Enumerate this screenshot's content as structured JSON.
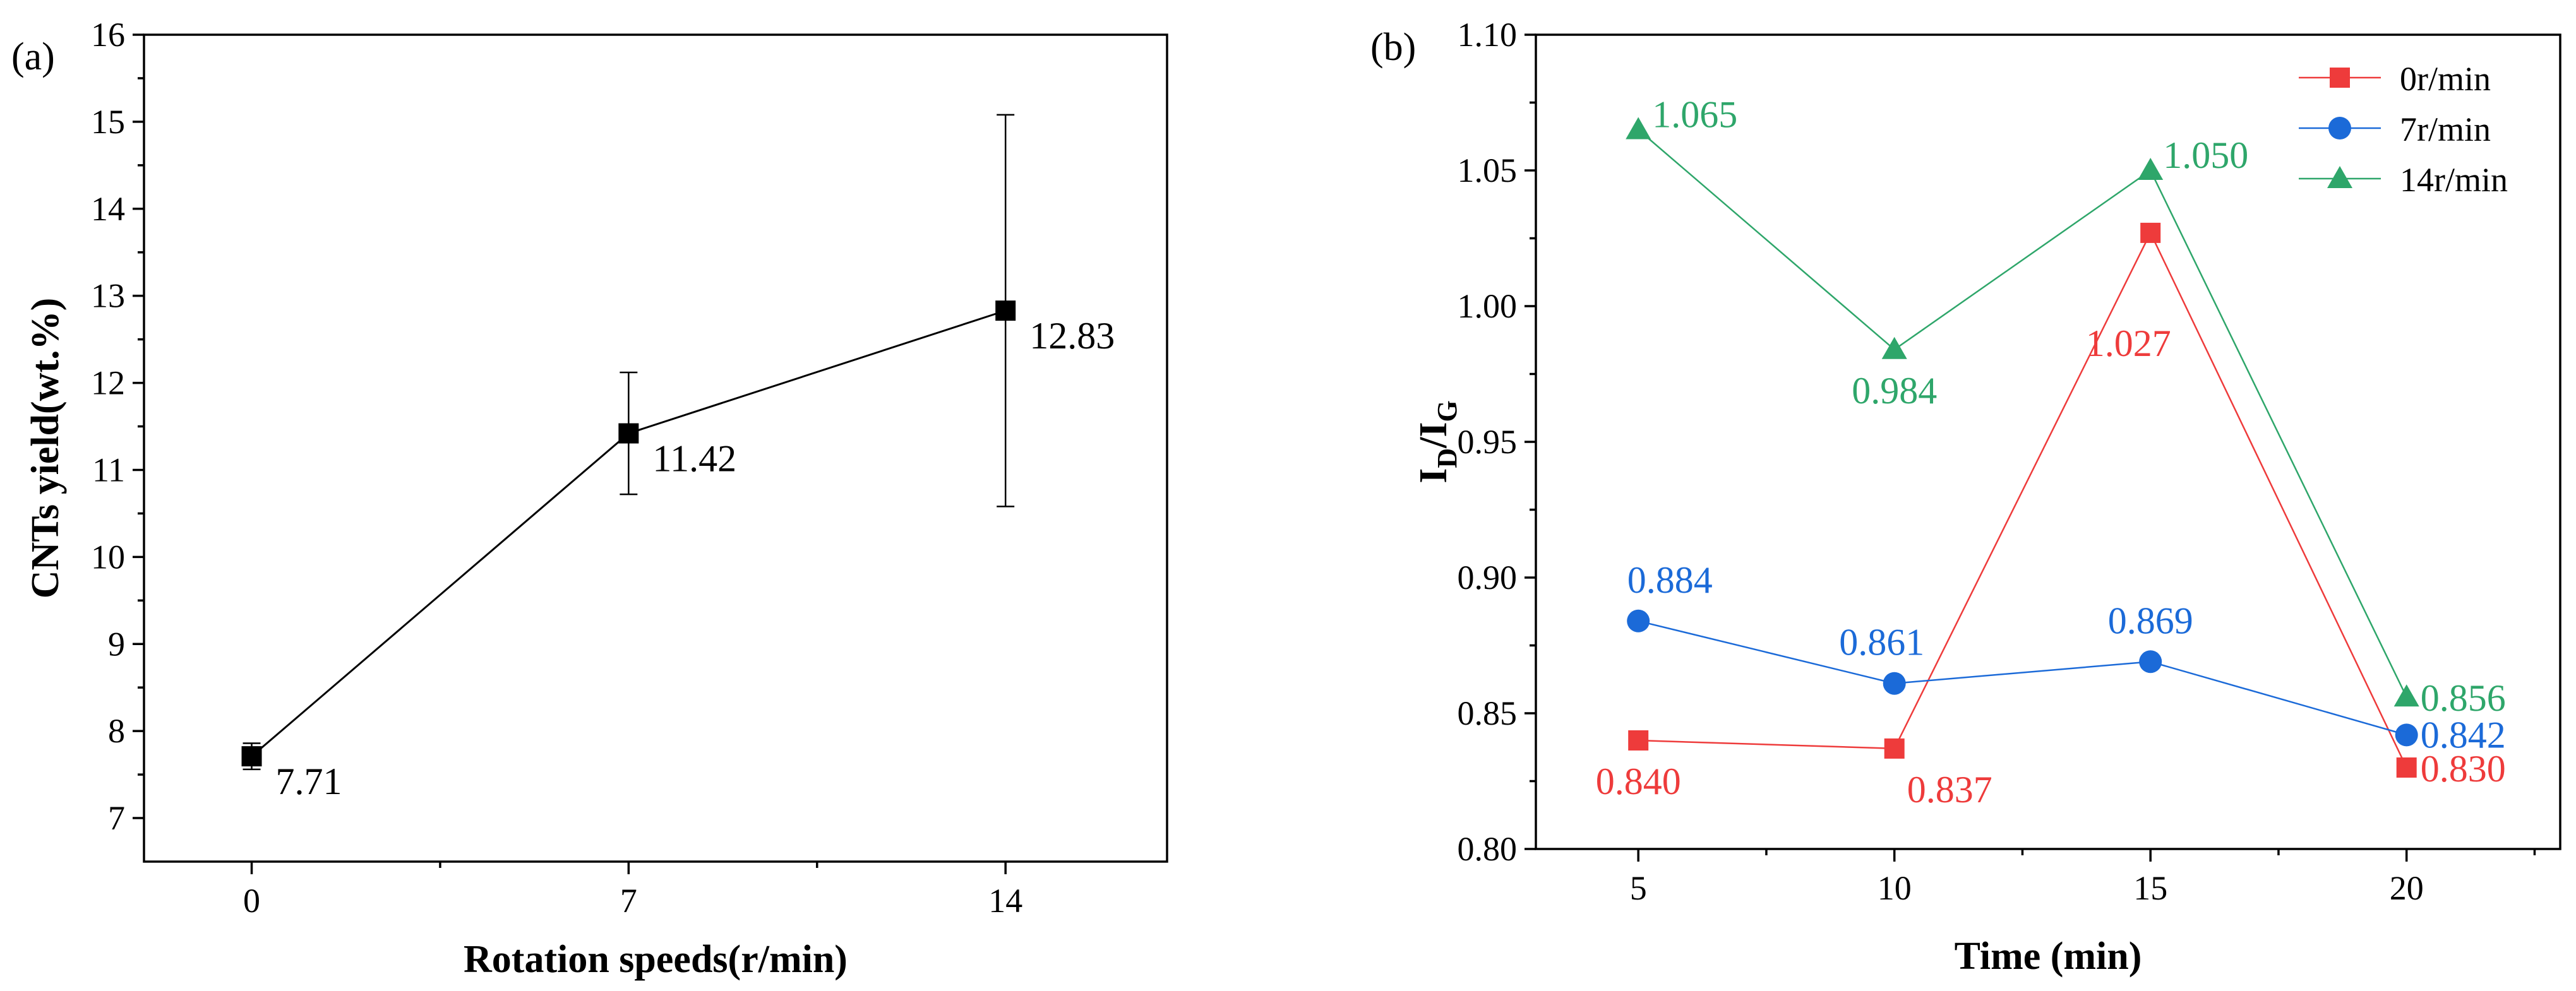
{
  "chart_data": [
    {
      "type": "line",
      "panel_label": "(a)",
      "title": "",
      "xlabel": "Rotation speeds(r/min)",
      "ylabel": "CNTs yield(wt.%)",
      "categories": [
        "0",
        "7",
        "14"
      ],
      "x": [
        0,
        7,
        14
      ],
      "xlim": [
        -2,
        17
      ],
      "ylim": [
        6.5,
        16
      ],
      "yticks": [
        7,
        8,
        9,
        10,
        11,
        12,
        13,
        14,
        15,
        16
      ],
      "series": [
        {
          "name": "CNTs yield",
          "color": "#000000",
          "marker": "square",
          "values": [
            7.71,
            11.42,
            12.83
          ],
          "error": [
            0.15,
            0.7,
            2.25
          ],
          "labels": [
            "7.71",
            "11.42",
            "12.83"
          ]
        }
      ],
      "legend": "none",
      "grid": false
    },
    {
      "type": "line",
      "panel_label": "(b)",
      "title": "",
      "xlabel": "Time (min)",
      "ylabel_main": "I",
      "ylabel_sub1": "D",
      "ylabel_mid": "/I",
      "ylabel_sub2": "G",
      "categories": [
        "5",
        "10",
        "15",
        "20"
      ],
      "x": [
        5,
        10,
        15,
        20
      ],
      "xlim": [
        3,
        23
      ],
      "ylim": [
        0.8,
        1.1
      ],
      "yticks": [
        "0.80",
        "0.85",
        "0.90",
        "0.95",
        "1.00",
        "1.05",
        "1.10"
      ],
      "series": [
        {
          "name": "0r/min",
          "color": "#ee3b3b",
          "marker": "square",
          "values": [
            0.84,
            0.837,
            1.027,
            0.83
          ],
          "labels": [
            "0.840",
            "0.837",
            "1.027",
            "0.830"
          ]
        },
        {
          "name": "7r/min",
          "color": "#1b6ad8",
          "marker": "circle",
          "values": [
            0.884,
            0.861,
            0.869,
            0.842
          ],
          "labels": [
            "0.884",
            "0.861",
            "0.869",
            "0.842"
          ]
        },
        {
          "name": "14r/min",
          "color": "#2ea66a",
          "marker": "triangle",
          "values": [
            1.065,
            0.984,
            1.05,
            0.856
          ],
          "labels": [
            "1.065",
            "0.984",
            "1.050",
            "0.856"
          ]
        }
      ],
      "legend": "top-right",
      "grid": false
    }
  ]
}
